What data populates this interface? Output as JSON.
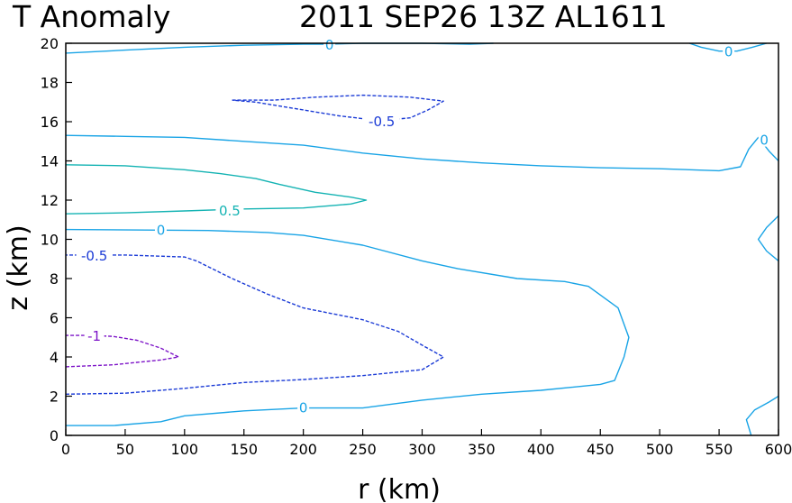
{
  "header": {
    "title_left": "T Anomaly",
    "title_right": "2011 SEP26 13Z  AL1611"
  },
  "colors": {
    "zero": "#19a4e6",
    "pos_half": "#14b3b3",
    "neg_half": "#1a3ad6",
    "neg_one": "#7d14c8"
  },
  "chart_data": {
    "type": "contour",
    "variable": "T Anomaly",
    "xlabel": "r (km)",
    "ylabel": "z (km)",
    "xlim": [
      0,
      600
    ],
    "ylim": [
      0,
      20
    ],
    "xticks": [
      0,
      50,
      100,
      150,
      200,
      250,
      300,
      350,
      400,
      450,
      500,
      550,
      600
    ],
    "yticks": [
      0,
      2,
      4,
      6,
      8,
      10,
      12,
      14,
      16,
      18,
      20
    ],
    "contours": [
      {
        "level": 0,
        "style": "solid",
        "color": "#19a4e6",
        "points": [
          [
            0,
            0.5
          ],
          [
            40,
            0.5
          ],
          [
            80,
            0.7
          ],
          [
            100,
            1.0
          ],
          [
            150,
            1.25
          ],
          [
            200,
            1.4
          ],
          [
            250,
            1.4
          ],
          [
            300,
            1.8
          ],
          [
            350,
            2.1
          ],
          [
            400,
            2.3
          ],
          [
            450,
            2.6
          ],
          [
            462,
            2.8
          ],
          [
            470,
            4.0
          ],
          [
            474,
            5.0
          ],
          [
            465,
            6.5
          ],
          [
            440,
            7.6
          ],
          [
            420,
            7.85
          ],
          [
            380,
            8.0
          ],
          [
            330,
            8.5
          ],
          [
            300,
            8.9
          ],
          [
            250,
            9.7
          ],
          [
            200,
            10.2
          ],
          [
            170,
            10.35
          ],
          [
            120,
            10.45
          ],
          [
            0,
            10.5
          ]
        ]
      },
      {
        "level": 0,
        "style": "solid",
        "color": "#19a4e6",
        "points": [
          [
            0,
            15.3
          ],
          [
            50,
            15.25
          ],
          [
            100,
            15.2
          ],
          [
            150,
            15.0
          ],
          [
            200,
            14.8
          ],
          [
            250,
            14.4
          ],
          [
            300,
            14.1
          ],
          [
            350,
            13.9
          ],
          [
            400,
            13.75
          ],
          [
            450,
            13.65
          ],
          [
            500,
            13.6
          ],
          [
            550,
            13.5
          ],
          [
            568,
            13.7
          ],
          [
            575,
            14.6
          ],
          [
            583,
            15.2
          ],
          [
            592,
            14.5
          ],
          [
            600,
            14.0
          ]
        ]
      },
      {
        "level": 0,
        "style": "solid",
        "color": "#19a4e6",
        "points": [
          [
            0,
            19.5
          ],
          [
            50,
            19.65
          ],
          [
            100,
            19.8
          ],
          [
            150,
            19.9
          ],
          [
            200,
            19.95
          ],
          [
            220,
            19.95
          ],
          [
            250,
            20.0
          ],
          [
            300,
            20.0
          ],
          [
            340,
            19.95
          ],
          [
            360,
            20.0
          ]
        ]
      },
      {
        "level": 0,
        "style": "solid",
        "color": "#19a4e6",
        "points": [
          [
            525,
            20.0
          ],
          [
            535,
            19.8
          ],
          [
            550,
            19.6
          ],
          [
            565,
            19.6
          ],
          [
            578,
            19.8
          ],
          [
            590,
            20.0
          ]
        ]
      },
      {
        "level": 0,
        "style": "solid",
        "color": "#19a4e6",
        "points": [
          [
            600,
            11.2
          ],
          [
            590,
            10.6
          ],
          [
            583,
            10.0
          ],
          [
            590,
            9.4
          ],
          [
            600,
            8.9
          ]
        ]
      },
      {
        "level": 0,
        "style": "solid",
        "color": "#19a4e6",
        "points": [
          [
            577,
            0.0
          ],
          [
            573,
            0.8
          ],
          [
            580,
            1.3
          ],
          [
            592,
            1.7
          ],
          [
            600,
            2.0
          ]
        ]
      },
      {
        "level": 0.5,
        "style": "solid",
        "color": "#14b3b3",
        "points": [
          [
            0,
            11.3
          ],
          [
            50,
            11.35
          ],
          [
            100,
            11.45
          ],
          [
            150,
            11.55
          ],
          [
            200,
            11.6
          ],
          [
            240,
            11.8
          ],
          [
            253,
            12.0
          ],
          [
            240,
            12.15
          ],
          [
            210,
            12.4
          ],
          [
            180,
            12.8
          ],
          [
            160,
            13.1
          ],
          [
            130,
            13.35
          ],
          [
            100,
            13.55
          ],
          [
            50,
            13.75
          ],
          [
            0,
            13.8
          ]
        ]
      },
      {
        "level": -0.5,
        "style": "dashed",
        "color": "#1a3ad6",
        "points": [
          [
            0,
            2.1
          ],
          [
            50,
            2.15
          ],
          [
            100,
            2.4
          ],
          [
            150,
            2.7
          ],
          [
            200,
            2.85
          ],
          [
            250,
            3.05
          ],
          [
            300,
            3.35
          ],
          [
            318,
            4.0
          ],
          [
            300,
            4.6
          ],
          [
            280,
            5.3
          ],
          [
            250,
            5.9
          ],
          [
            200,
            6.5
          ],
          [
            170,
            7.2
          ],
          [
            140,
            8.0
          ],
          [
            110,
            8.9
          ],
          [
            100,
            9.1
          ],
          [
            50,
            9.2
          ],
          [
            0,
            9.2
          ]
        ]
      },
      {
        "level": -0.5,
        "style": "dashed",
        "color": "#1a3ad6",
        "points": [
          [
            140,
            17.1
          ],
          [
            175,
            17.1
          ],
          [
            210,
            17.25
          ],
          [
            250,
            17.35
          ],
          [
            290,
            17.25
          ],
          [
            318,
            17.05
          ],
          [
            305,
            16.6
          ],
          [
            290,
            16.2
          ],
          [
            265,
            16.05
          ],
          [
            230,
            16.3
          ],
          [
            190,
            16.7
          ],
          [
            160,
            17.0
          ],
          [
            140,
            17.1
          ]
        ]
      },
      {
        "level": -1,
        "style": "dashed",
        "color": "#7d14c8",
        "points": [
          [
            0,
            3.5
          ],
          [
            40,
            3.6
          ],
          [
            80,
            3.85
          ],
          [
            95,
            4.0
          ],
          [
            80,
            4.45
          ],
          [
            60,
            4.85
          ],
          [
            40,
            5.05
          ],
          [
            20,
            5.1
          ],
          [
            0,
            5.1
          ]
        ]
      }
    ],
    "labels": [
      {
        "text": "0",
        "r": 200,
        "z": 1.45,
        "color": "#19a4e6"
      },
      {
        "text": "0",
        "r": 80,
        "z": 10.5,
        "color": "#19a4e6"
      },
      {
        "text": "0",
        "r": 222,
        "z": 19.95,
        "color": "#19a4e6"
      },
      {
        "text": "0",
        "r": 558,
        "z": 19.6,
        "color": "#19a4e6"
      },
      {
        "text": "0",
        "r": 588,
        "z": 15.1,
        "color": "#19a4e6"
      },
      {
        "text": "0.5",
        "r": 138,
        "z": 11.5,
        "color": "#14b3b3"
      },
      {
        "text": "-0.5",
        "r": 24,
        "z": 9.2,
        "color": "#1a3ad6"
      },
      {
        "text": "-0.5",
        "r": 266,
        "z": 16.05,
        "color": "#1a3ad6"
      },
      {
        "text": "-1",
        "r": 24,
        "z": 5.1,
        "color": "#7d14c8"
      }
    ]
  }
}
